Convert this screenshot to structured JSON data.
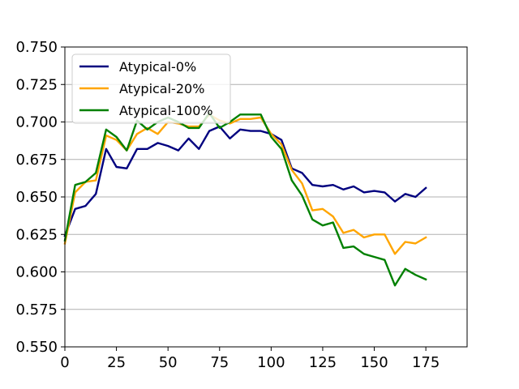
{
  "chart_data": {
    "type": "line",
    "title": "",
    "xlabel": "",
    "ylabel": "",
    "xlim": [
      0,
      195
    ],
    "ylim": [
      0.55,
      0.75
    ],
    "x_ticks": [
      0,
      25,
      50,
      75,
      100,
      125,
      150,
      175
    ],
    "x_tick_labels": [
      "0",
      "25",
      "50",
      "75",
      "100",
      "125",
      "150",
      "175"
    ],
    "y_ticks": [
      0.55,
      0.575,
      0.6,
      0.625,
      0.65,
      0.675,
      0.7,
      0.725,
      0.75
    ],
    "y_tick_labels": [
      "0.550",
      "0.575",
      "0.600",
      "0.625",
      "0.650",
      "0.675",
      "0.700",
      "0.725",
      "0.750"
    ],
    "grid": "horizontal",
    "legend_position": "top-left",
    "x": [
      0,
      5,
      10,
      15,
      20,
      25,
      30,
      35,
      40,
      45,
      50,
      55,
      60,
      65,
      70,
      75,
      80,
      85,
      90,
      95,
      100,
      105,
      110,
      115,
      120,
      125,
      130,
      135,
      140,
      145,
      150,
      155,
      160,
      165,
      170,
      175
    ],
    "series": [
      {
        "name": "Atypical-0%",
        "color": "#00007f",
        "values": [
          0.624,
          0.642,
          0.644,
          0.652,
          0.682,
          0.67,
          0.669,
          0.682,
          0.682,
          0.686,
          0.684,
          0.681,
          0.689,
          0.682,
          0.694,
          0.697,
          0.689,
          0.695,
          0.694,
          0.694,
          0.692,
          0.688,
          0.669,
          0.666,
          0.658,
          0.657,
          0.658,
          0.655,
          0.657,
          0.653,
          0.654,
          0.653,
          0.647,
          0.652,
          0.65,
          0.656
        ]
      },
      {
        "name": "Atypical-20%",
        "color": "#ffa500",
        "values": [
          0.619,
          0.653,
          0.66,
          0.661,
          0.691,
          0.688,
          0.681,
          0.692,
          0.696,
          0.692,
          0.7,
          0.699,
          0.697,
          0.697,
          0.705,
          0.701,
          0.699,
          0.702,
          0.702,
          0.703,
          0.692,
          0.685,
          0.668,
          0.659,
          0.641,
          0.642,
          0.637,
          0.626,
          0.628,
          0.623,
          0.625,
          0.625,
          0.612,
          0.62,
          0.619,
          0.623
        ]
      },
      {
        "name": "Atypical-100%",
        "color": "#008000",
        "values": [
          0.621,
          0.658,
          0.66,
          0.666,
          0.695,
          0.69,
          0.681,
          0.701,
          0.695,
          0.7,
          0.703,
          0.7,
          0.696,
          0.696,
          0.706,
          0.696,
          0.7,
          0.705,
          0.705,
          0.705,
          0.69,
          0.682,
          0.661,
          0.651,
          0.635,
          0.631,
          0.633,
          0.616,
          0.617,
          0.612,
          0.61,
          0.608,
          0.591,
          0.602,
          0.598,
          0.595
        ]
      }
    ]
  }
}
